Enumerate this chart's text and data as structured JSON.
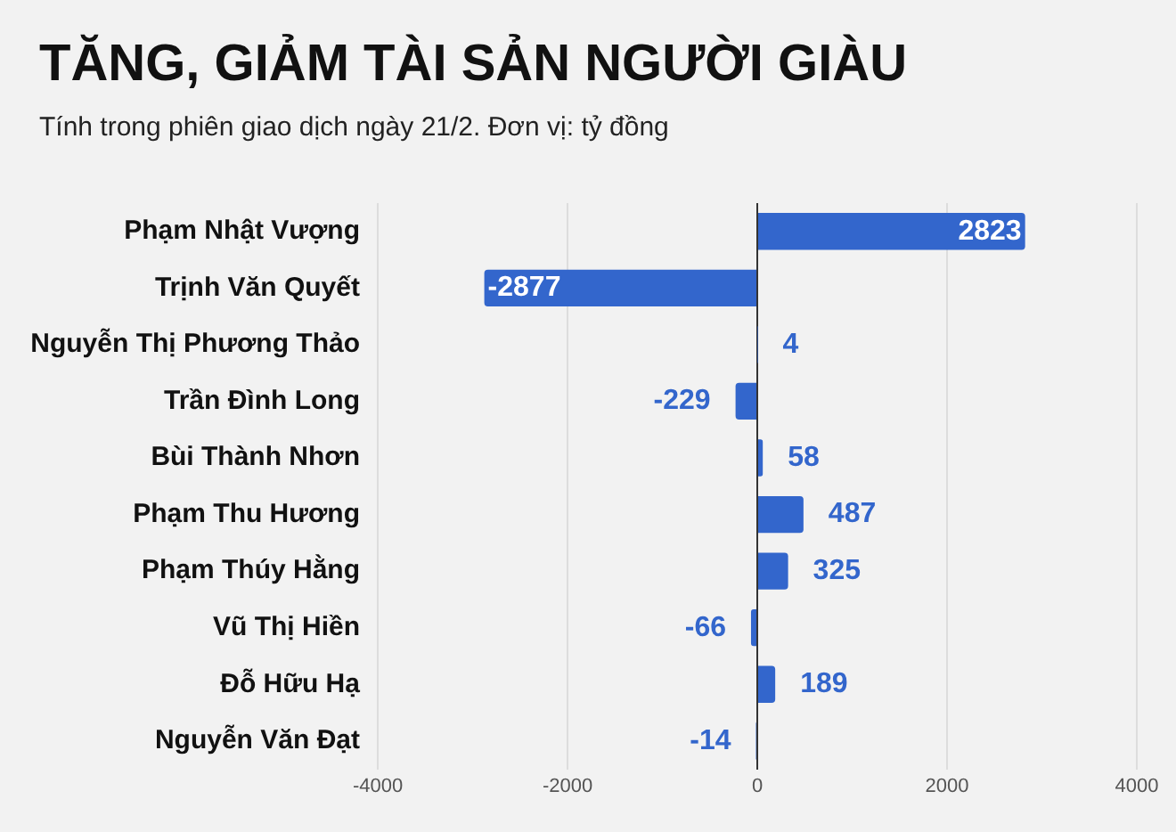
{
  "chart_data": {
    "type": "bar",
    "orientation": "horizontal",
    "title": "TĂNG, GIẢM TÀI SẢN NGƯỜI GIÀU",
    "subtitle": "Tính trong phiên giao dịch ngày 21/2. Đơn vị: tỷ đồng",
    "categories": [
      "Phạm Nhật Vượng",
      "Trịnh Văn Quyết",
      "Nguyễn Thị Phương Thảo",
      "Trần Đình Long",
      "Bùi Thành Nhơn",
      "Phạm Thu Hương",
      "Phạm Thúy Hằng",
      "Vũ Thị Hiền",
      "Đỗ Hữu Hạ",
      "Nguyễn Văn Đạt"
    ],
    "values": [
      2823,
      -2877,
      4,
      -229,
      58,
      487,
      325,
      -66,
      189,
      -14
    ],
    "color": "#3366cc",
    "xlim": [
      -4000,
      4000
    ],
    "xticks": [
      -4000,
      -2000,
      0,
      2000,
      4000
    ],
    "grid": "x",
    "data_labels": true,
    "legend": false
  }
}
